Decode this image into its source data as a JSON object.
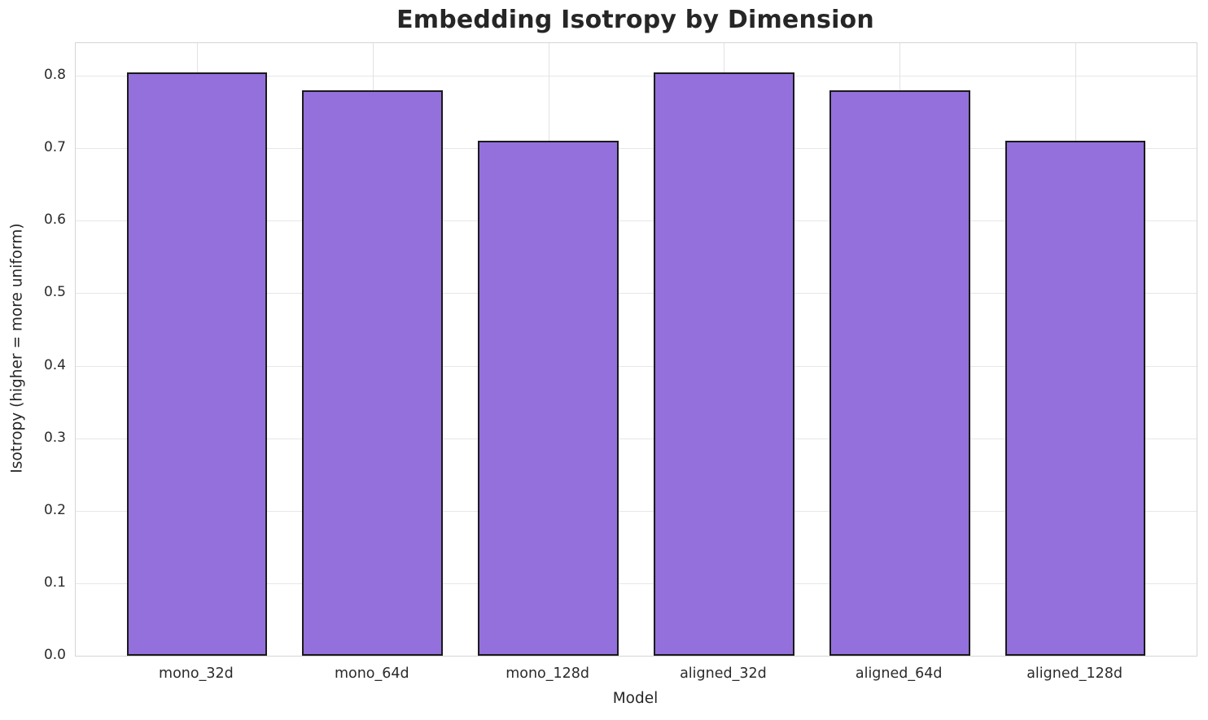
{
  "chart_data": {
    "type": "bar",
    "title": "Embedding Isotropy by Dimension",
    "xlabel": "Model",
    "ylabel": "Isotropy (higher = more uniform)",
    "categories": [
      "mono_32d",
      "mono_64d",
      "mono_128d",
      "aligned_32d",
      "aligned_64d",
      "aligned_128d"
    ],
    "values": [
      0.805,
      0.78,
      0.71,
      0.805,
      0.78,
      0.71
    ],
    "ylim": [
      0,
      0.845
    ],
    "yticks": [
      0.0,
      0.1,
      0.2,
      0.3,
      0.4,
      0.5,
      0.6,
      0.7,
      0.8
    ],
    "ytick_decimals": 1,
    "grid": true,
    "legend": null,
    "bar_color": "#9370DB",
    "bar_edge_color": "#1a1a1a",
    "grid_color": "#e7e7e7",
    "spine_color": "#d5d5d5",
    "text_color": "#262626",
    "background_color": "#ffffff"
  }
}
